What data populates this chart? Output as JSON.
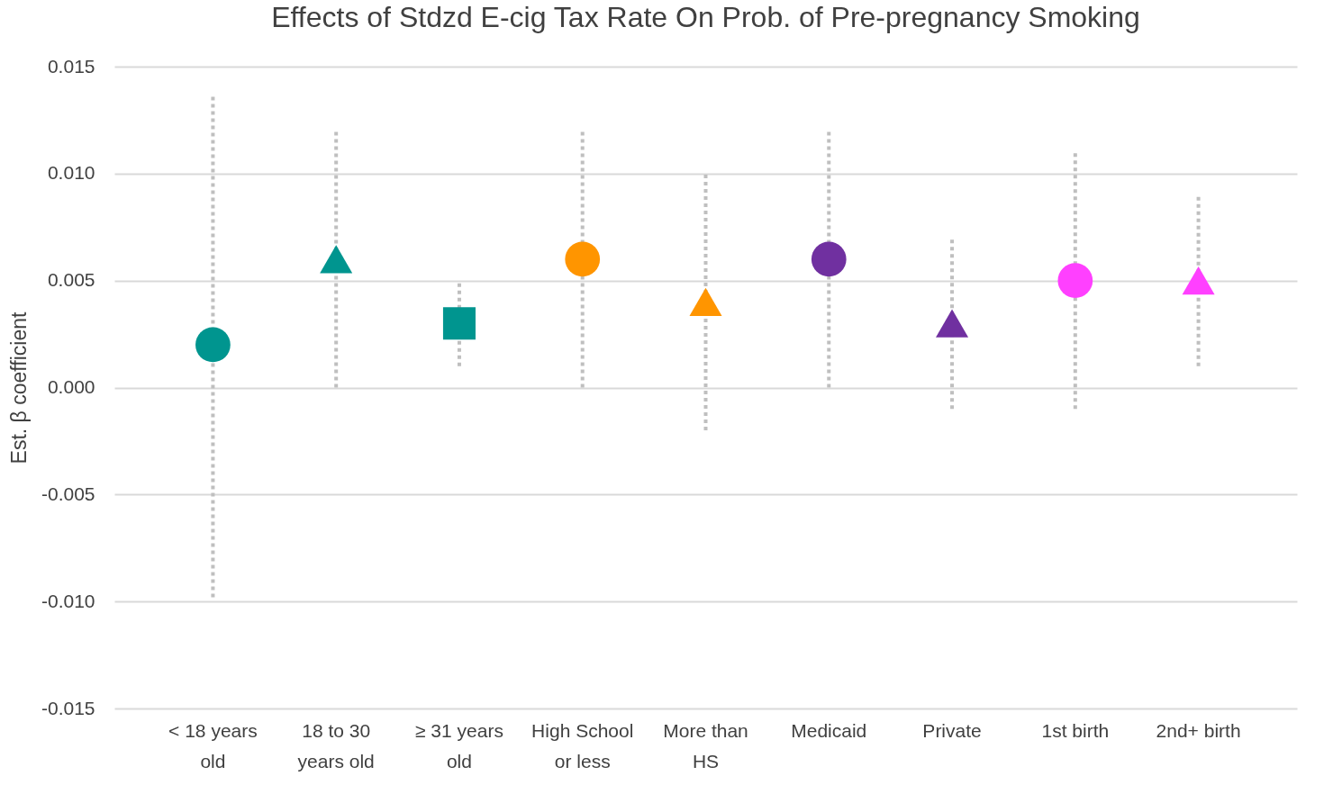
{
  "chart_data": {
    "type": "scatter",
    "title": "Effects of Stdzd E-cig Tax Rate On Prob. of Pre-pregnancy Smoking",
    "ylabel": "Est. β coefficient",
    "categories": [
      "< 18 years old",
      "18 to 30 years old",
      "≥ 31 years old",
      "High School or less",
      "More than HS",
      "Medicaid",
      "Private",
      "1st birth",
      "2nd+ birth"
    ],
    "ylim": [
      -0.015,
      0.015
    ],
    "yticks": [
      {
        "value": -0.015,
        "label": "-0.015"
      },
      {
        "value": -0.01,
        "label": "-0.010"
      },
      {
        "value": -0.005,
        "label": "-0.005"
      },
      {
        "value": 0,
        "label": "0.000"
      },
      {
        "value": 0.005,
        "label": "0.005"
      },
      {
        "value": 0.01,
        "label": "0.010"
      },
      {
        "value": 0.015,
        "label": "0.015"
      }
    ],
    "grid": "y",
    "series": [
      {
        "marker": "circle",
        "colors": [
          "#00958f",
          null,
          null,
          "#ff9500",
          null,
          "#7030a0",
          null,
          "#ff40ff",
          null
        ],
        "values": [
          0.002,
          null,
          null,
          0.006,
          null,
          0.006,
          null,
          0.005,
          null
        ],
        "errors": [
          [
            -0.0098,
            0.0136
          ],
          null,
          null,
          [
            0,
            0.012
          ],
          null,
          [
            0,
            0.012
          ],
          null,
          [
            -0.001,
            0.011
          ],
          null
        ]
      },
      {
        "marker": "triangle",
        "colors": [
          null,
          "#00958f",
          null,
          null,
          "#ff9500",
          null,
          "#7030a0",
          null,
          "#ff40ff"
        ],
        "values": [
          null,
          0.006,
          null,
          null,
          0.004,
          null,
          0.003,
          null,
          0.005
        ],
        "errors": [
          null,
          [
            0,
            0.012
          ],
          null,
          null,
          [
            -0.002,
            0.01
          ],
          null,
          [
            -0.001,
            0.007
          ],
          null,
          [
            0.001,
            0.009
          ]
        ]
      },
      {
        "marker": "square",
        "colors": [
          null,
          null,
          "#00958f",
          null,
          null,
          null,
          null,
          null,
          null
        ],
        "values": [
          null,
          null,
          0.003,
          null,
          null,
          null,
          null,
          null,
          null
        ],
        "errors": [
          null,
          null,
          [
            0.001,
            0.005
          ],
          null,
          null,
          null,
          null,
          null,
          null
        ]
      }
    ]
  }
}
